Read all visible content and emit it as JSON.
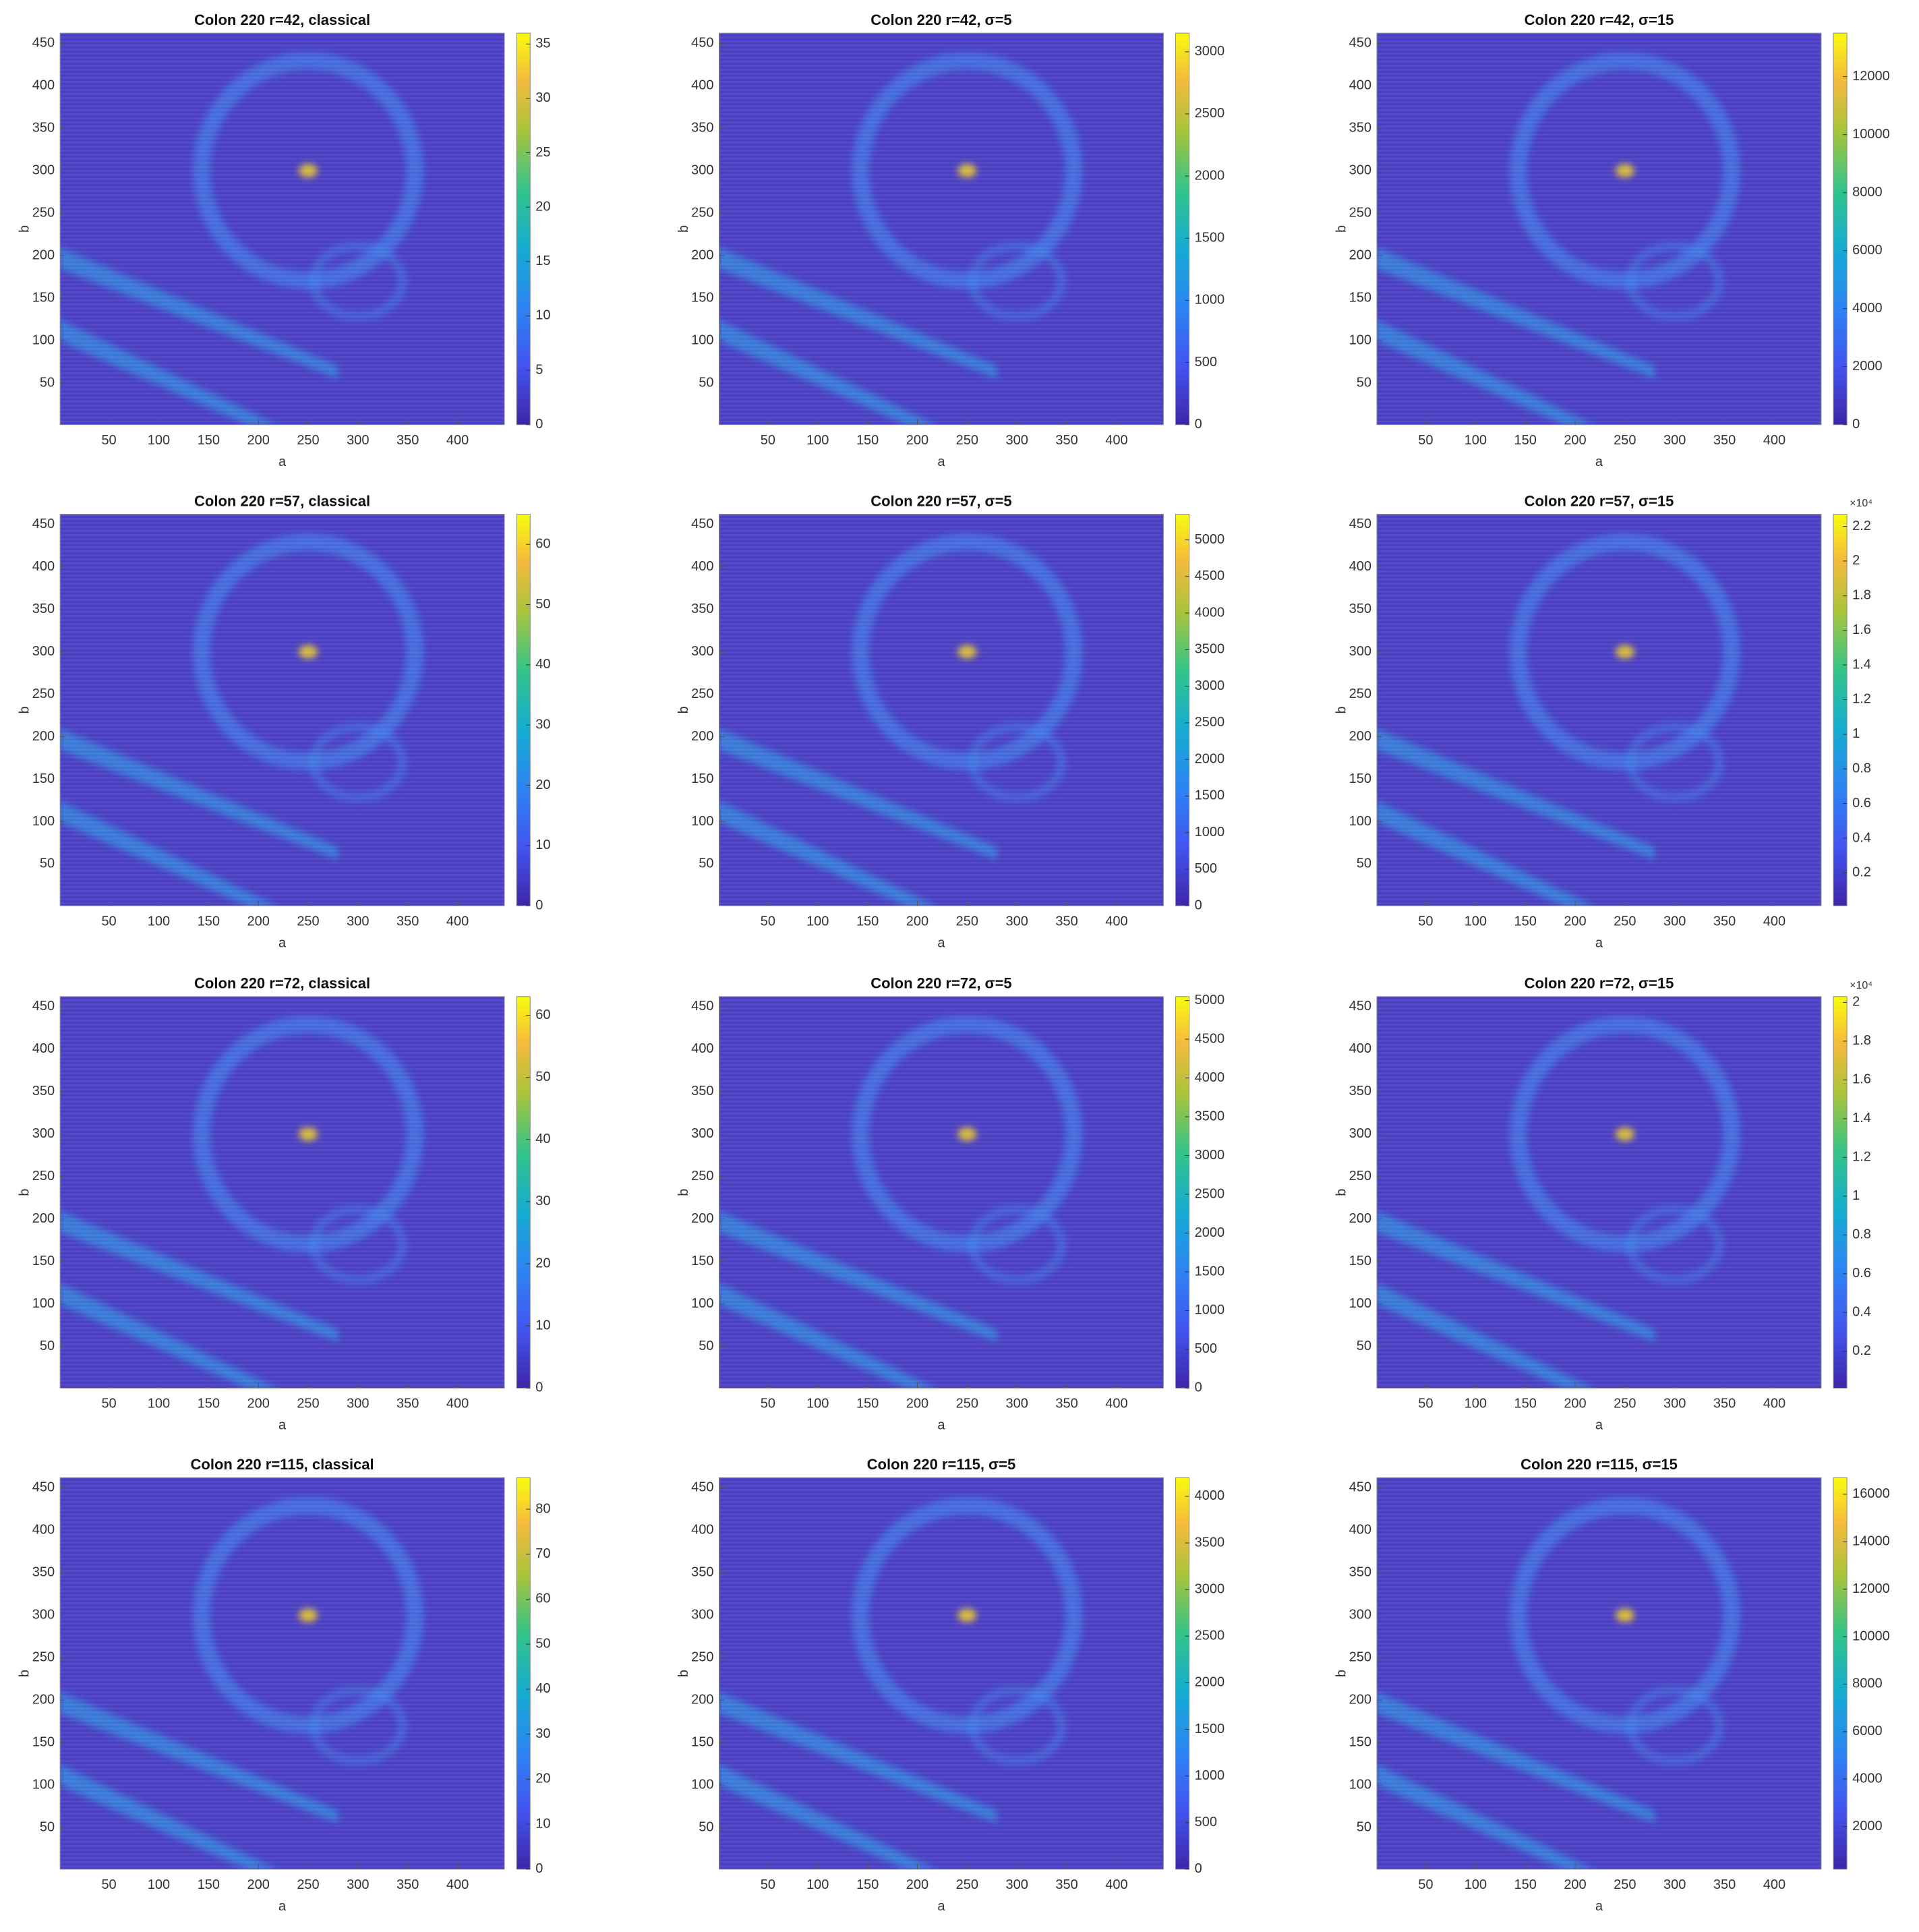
{
  "chart_data": [
    {
      "type": "heatmap",
      "title": "Colon 220 r=42, classical",
      "xlabel": "a",
      "ylabel": "b",
      "xlim": [
        1,
        447
      ],
      "ylim": [
        1,
        462
      ],
      "xticks": [
        50,
        100,
        150,
        200,
        250,
        300,
        350,
        400
      ],
      "yticks": [
        50,
        100,
        150,
        200,
        250,
        300,
        350,
        400,
        450
      ],
      "clim": [
        0,
        36
      ],
      "cticks": [
        0,
        5,
        10,
        15,
        20,
        25,
        30,
        35
      ],
      "colormap": "parula"
    },
    {
      "type": "heatmap",
      "title": "Colon 220 r=42, σ=5",
      "xlabel": "a",
      "ylabel": "b",
      "xlim": [
        1,
        447
      ],
      "ylim": [
        1,
        462
      ],
      "xticks": [
        50,
        100,
        150,
        200,
        250,
        300,
        350,
        400
      ],
      "yticks": [
        50,
        100,
        150,
        200,
        250,
        300,
        350,
        400,
        450
      ],
      "clim": [
        0,
        3150
      ],
      "cticks": [
        0,
        500,
        1000,
        1500,
        2000,
        2500,
        3000
      ],
      "colormap": "parula"
    },
    {
      "type": "heatmap",
      "title": "Colon 220 r=42, σ=15",
      "xlabel": "a",
      "ylabel": "b",
      "xlim": [
        1,
        447
      ],
      "ylim": [
        1,
        462
      ],
      "xticks": [
        50,
        100,
        150,
        200,
        250,
        300,
        350,
        400
      ],
      "yticks": [
        50,
        100,
        150,
        200,
        250,
        300,
        350,
        400,
        450
      ],
      "clim": [
        0,
        13500
      ],
      "cticks": [
        0,
        2000,
        4000,
        6000,
        8000,
        10000,
        12000
      ],
      "colormap": "parula"
    },
    {
      "type": "heatmap",
      "title": "Colon 220 r=57, classical",
      "xlabel": "a",
      "ylabel": "b",
      "xlim": [
        1,
        447
      ],
      "ylim": [
        1,
        462
      ],
      "xticks": [
        50,
        100,
        150,
        200,
        250,
        300,
        350,
        400
      ],
      "yticks": [
        50,
        100,
        150,
        200,
        250,
        300,
        350,
        400,
        450
      ],
      "clim": [
        0,
        65
      ],
      "cticks": [
        0,
        10,
        20,
        30,
        40,
        50,
        60
      ],
      "colormap": "parula"
    },
    {
      "type": "heatmap",
      "title": "Colon 220 r=57, σ=5",
      "xlabel": "a",
      "ylabel": "b",
      "xlim": [
        1,
        447
      ],
      "ylim": [
        1,
        462
      ],
      "xticks": [
        50,
        100,
        150,
        200,
        250,
        300,
        350,
        400
      ],
      "yticks": [
        50,
        100,
        150,
        200,
        250,
        300,
        350,
        400,
        450
      ],
      "clim": [
        0,
        5350
      ],
      "cticks": [
        0,
        500,
        1000,
        1500,
        2000,
        2500,
        3000,
        3500,
        4000,
        4500,
        5000
      ],
      "colormap": "parula"
    },
    {
      "type": "heatmap",
      "title": "Colon 220 r=57, σ=15",
      "xlabel": "a",
      "ylabel": "b",
      "xlim": [
        1,
        447
      ],
      "ylim": [
        1,
        462
      ],
      "xticks": [
        50,
        100,
        150,
        200,
        250,
        300,
        350,
        400
      ],
      "yticks": [
        50,
        100,
        150,
        200,
        250,
        300,
        350,
        400,
        450
      ],
      "clim": [
        0.01,
        2.27
      ],
      "cticks": [
        0.2,
        0.4,
        0.6,
        0.8,
        1,
        1.2,
        1.4,
        1.6,
        1.8,
        2,
        2.2
      ],
      "cticks_scale": "×10⁴",
      "colormap": "parula"
    },
    {
      "type": "heatmap",
      "title": "Colon 220 r=72, classical",
      "xlabel": "a",
      "ylabel": "b",
      "xlim": [
        1,
        447
      ],
      "ylim": [
        1,
        462
      ],
      "xticks": [
        50,
        100,
        150,
        200,
        250,
        300,
        350,
        400
      ],
      "yticks": [
        50,
        100,
        150,
        200,
        250,
        300,
        350,
        400,
        450
      ],
      "clim": [
        0,
        63
      ],
      "cticks": [
        0,
        10,
        20,
        30,
        40,
        50,
        60
      ],
      "colormap": "parula"
    },
    {
      "type": "heatmap",
      "title": "Colon 220 r=72, σ=5",
      "xlabel": "a",
      "ylabel": "b",
      "xlim": [
        1,
        447
      ],
      "ylim": [
        1,
        462
      ],
      "xticks": [
        50,
        100,
        150,
        200,
        250,
        300,
        350,
        400
      ],
      "yticks": [
        50,
        100,
        150,
        200,
        250,
        300,
        350,
        400,
        450
      ],
      "clim": [
        0,
        5050
      ],
      "cticks": [
        0,
        500,
        1000,
        1500,
        2000,
        2500,
        3000,
        3500,
        4000,
        4500,
        5000
      ],
      "colormap": "parula"
    },
    {
      "type": "heatmap",
      "title": "Colon 220 r=72, σ=15",
      "xlabel": "a",
      "ylabel": "b",
      "xlim": [
        1,
        447
      ],
      "ylim": [
        1,
        462
      ],
      "xticks": [
        50,
        100,
        150,
        200,
        250,
        300,
        350,
        400
      ],
      "yticks": [
        50,
        100,
        150,
        200,
        250,
        300,
        350,
        400,
        450
      ],
      "clim": [
        0.01,
        2.03
      ],
      "cticks": [
        0.2,
        0.4,
        0.6,
        0.8,
        1,
        1.2,
        1.4,
        1.6,
        1.8,
        2
      ],
      "cticks_scale": "×10⁴",
      "colormap": "parula"
    },
    {
      "type": "heatmap",
      "title": "Colon 220 r=115, classical",
      "xlabel": "a",
      "ylabel": "b",
      "xlim": [
        1,
        447
      ],
      "ylim": [
        1,
        462
      ],
      "xticks": [
        50,
        100,
        150,
        200,
        250,
        300,
        350,
        400
      ],
      "yticks": [
        50,
        100,
        150,
        200,
        250,
        300,
        350,
        400,
        450
      ],
      "clim": [
        0,
        87
      ],
      "cticks": [
        0,
        10,
        20,
        30,
        40,
        50,
        60,
        70,
        80
      ],
      "colormap": "parula"
    },
    {
      "type": "heatmap",
      "title": "Colon 220 r=115, σ=5",
      "xlabel": "a",
      "ylabel": "b",
      "xlim": [
        1,
        447
      ],
      "ylim": [
        1,
        462
      ],
      "xticks": [
        50,
        100,
        150,
        200,
        250,
        300,
        350,
        400
      ],
      "yticks": [
        50,
        100,
        150,
        200,
        250,
        300,
        350,
        400,
        450
      ],
      "clim": [
        0,
        4200
      ],
      "cticks": [
        0,
        500,
        1000,
        1500,
        2000,
        2500,
        3000,
        3500,
        4000
      ],
      "colormap": "parula"
    },
    {
      "type": "heatmap",
      "title": "Colon 220 r=115, σ=15",
      "xlabel": "a",
      "ylabel": "b",
      "xlim": [
        1,
        447
      ],
      "ylim": [
        1,
        462
      ],
      "xticks": [
        50,
        100,
        150,
        200,
        250,
        300,
        350,
        400
      ],
      "yticks": [
        50,
        100,
        150,
        200,
        250,
        300,
        350,
        400,
        450
      ],
      "clim": [
        200,
        16700
      ],
      "cticks": [
        2000,
        4000,
        6000,
        8000,
        10000,
        12000,
        14000,
        16000
      ],
      "colormap": "parula"
    }
  ]
}
